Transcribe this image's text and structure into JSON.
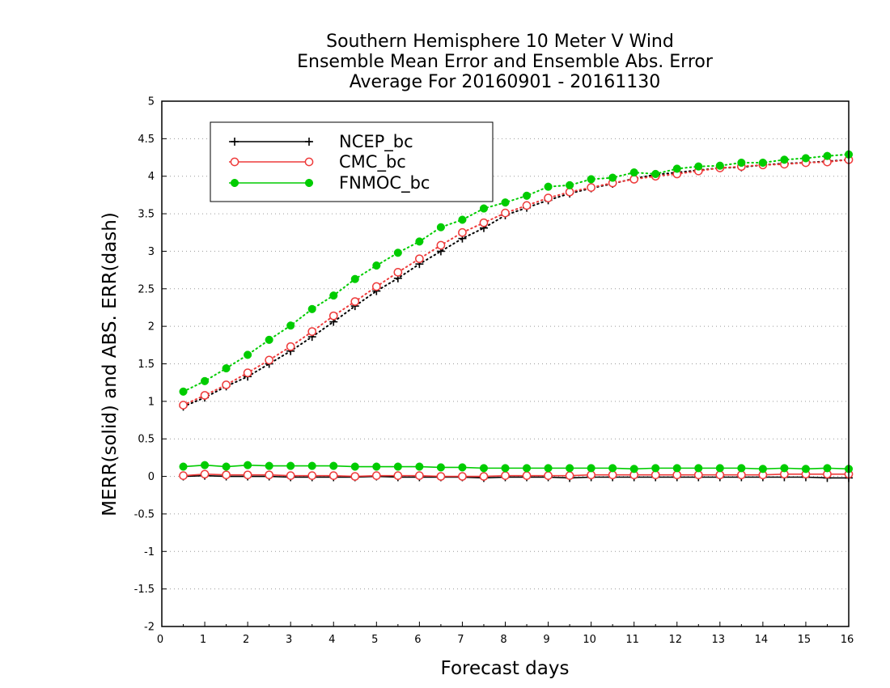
{
  "chart_data": {
    "type": "line",
    "title_lines": [
      "Southern Hemisphere 10 Meter V Wind",
      "Ensemble Mean Error and Ensemble Abs. Error",
      "Average For 20160901 - 20161130"
    ],
    "xlabel": "Forecast days",
    "ylabel": "MERR(solid) and ABS. ERR(dash)",
    "xlim": [
      0,
      16
    ],
    "ylim": [
      -2,
      5
    ],
    "x_ticks": [
      "0",
      "1",
      "2",
      "3",
      "4",
      "5",
      "6",
      "7",
      "8",
      "9",
      "10",
      "11",
      "12",
      "13",
      "14",
      "15",
      "16"
    ],
    "y_ticks": [
      "5",
      "4.5",
      "4",
      "3.5",
      "3",
      "2.5",
      "2",
      "1.5",
      "1",
      "0.5",
      "0",
      "-0.5",
      "-1",
      "-1.5",
      "-2"
    ],
    "grid": true,
    "legend_position": "top-left",
    "x": [
      0.5,
      1,
      1.5,
      2,
      2.5,
      3,
      3.5,
      4,
      4.5,
      5,
      5.5,
      6,
      6.5,
      7,
      7.5,
      8,
      8.5,
      9,
      9.5,
      10,
      10.5,
      11,
      11.5,
      12,
      12.5,
      13,
      13.5,
      14,
      14.5,
      15,
      15.5,
      16
    ],
    "series": [
      {
        "name": "NCEP_bc",
        "color": "#000000",
        "marker": "plus",
        "merr": [
          0.0,
          0.01,
          0.0,
          0.0,
          0.0,
          -0.01,
          -0.01,
          -0.01,
          -0.01,
          0.0,
          -0.01,
          -0.01,
          -0.01,
          -0.01,
          -0.02,
          -0.01,
          -0.01,
          -0.01,
          -0.02,
          -0.01,
          -0.01,
          -0.01,
          -0.01,
          -0.01,
          -0.01,
          -0.01,
          -0.01,
          -0.01,
          -0.01,
          -0.01,
          -0.02,
          -0.02
        ],
        "abs_err": [
          0.93,
          1.05,
          1.2,
          1.33,
          1.5,
          1.67,
          1.86,
          2.06,
          2.27,
          2.47,
          2.64,
          2.83,
          3.0,
          3.17,
          3.31,
          3.48,
          3.58,
          3.68,
          3.77,
          3.84,
          3.9,
          3.97,
          4.02,
          4.05,
          4.08,
          4.11,
          4.12,
          4.15,
          4.17,
          4.18,
          4.2,
          4.22
        ]
      },
      {
        "name": "CMC_bc",
        "color": "#ee3b3b",
        "marker": "open-circle",
        "merr": [
          0.01,
          0.03,
          0.02,
          0.02,
          0.02,
          0.01,
          0.01,
          0.01,
          0.0,
          0.01,
          0.01,
          0.01,
          0.0,
          0.0,
          0.0,
          0.01,
          0.01,
          0.01,
          0.01,
          0.02,
          0.02,
          0.02,
          0.02,
          0.02,
          0.02,
          0.02,
          0.02,
          0.02,
          0.03,
          0.03,
          0.03,
          0.03
        ],
        "abs_err": [
          0.95,
          1.08,
          1.22,
          1.38,
          1.55,
          1.73,
          1.93,
          2.14,
          2.33,
          2.53,
          2.72,
          2.9,
          3.08,
          3.25,
          3.38,
          3.51,
          3.61,
          3.71,
          3.79,
          3.85,
          3.91,
          3.96,
          4.0,
          4.03,
          4.07,
          4.11,
          4.13,
          4.15,
          4.16,
          4.18,
          4.19,
          4.22
        ]
      },
      {
        "name": "FNMOC_bc",
        "color": "#00cc00",
        "marker": "filled-circle",
        "merr": [
          0.13,
          0.15,
          0.13,
          0.15,
          0.14,
          0.14,
          0.14,
          0.14,
          0.13,
          0.13,
          0.13,
          0.13,
          0.12,
          0.12,
          0.11,
          0.11,
          0.11,
          0.11,
          0.11,
          0.11,
          0.11,
          0.1,
          0.11,
          0.11,
          0.11,
          0.11,
          0.11,
          0.1,
          0.11,
          0.1,
          0.11,
          0.1
        ],
        "abs_err": [
          1.13,
          1.27,
          1.44,
          1.62,
          1.82,
          2.01,
          2.23,
          2.41,
          2.63,
          2.81,
          2.98,
          3.13,
          3.32,
          3.42,
          3.57,
          3.65,
          3.74,
          3.86,
          3.88,
          3.96,
          3.98,
          4.05,
          4.03,
          4.1,
          4.13,
          4.14,
          4.18,
          4.18,
          4.22,
          4.24,
          4.27,
          4.29
        ]
      }
    ]
  }
}
